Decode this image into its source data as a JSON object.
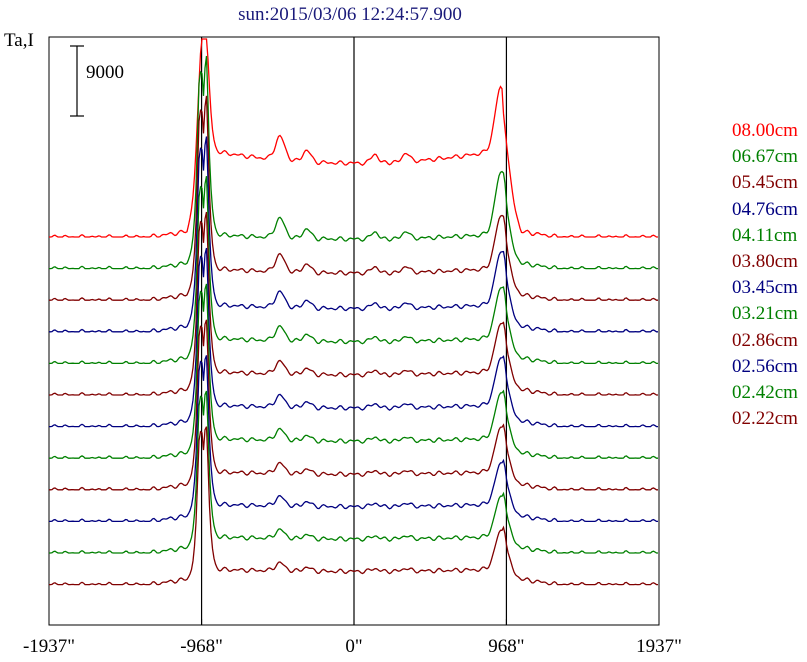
{
  "chart_data": {
    "type": "line",
    "title": "sun:2015/03/06 12:24:57.900",
    "ylabel": "Ta,I",
    "scale_bar": {
      "label": "9000",
      "value": 9000
    },
    "xlim": [
      -1937,
      1937
    ],
    "x_ticks": [
      {
        "value": -1937,
        "label": "-1937\""
      },
      {
        "value": -968,
        "label": "-968\""
      },
      {
        "value": 0,
        "label": "0\""
      },
      {
        "value": 968,
        "label": "968\""
      },
      {
        "value": 1937,
        "label": "1937\""
      }
    ],
    "vertical_lines": [
      -968,
      0,
      968
    ],
    "series": [
      {
        "name": "08.00cm",
        "color": "#ff0000",
        "offset": 0,
        "peakL": 29000,
        "peakR": 17500,
        "mid": 9500,
        "bump": 3000,
        "spiky": false
      },
      {
        "name": "06.67cm",
        "color": "#008000",
        "offset": 1,
        "peakL": 27000,
        "peakR": 11500,
        "mid": 3800,
        "bump": 2500,
        "spiky": true
      },
      {
        "name": "05.45cm",
        "color": "#800000",
        "offset": 2,
        "peakL": 26000,
        "peakR": 10000,
        "mid": 3500,
        "bump": 2200,
        "spiky": true
      },
      {
        "name": "04.76cm",
        "color": "#000080",
        "offset": 3,
        "peakL": 25000,
        "peakR": 9500,
        "mid": 3000,
        "bump": 2000,
        "spiky": true
      },
      {
        "name": "04.11cm",
        "color": "#008000",
        "offset": 4,
        "peakL": 24000,
        "peakR": 9000,
        "mid": 2800,
        "bump": 1800,
        "spiky": true
      },
      {
        "name": "03.80cm",
        "color": "#800000",
        "offset": 5,
        "peakL": 23500,
        "peakR": 8500,
        "mid": 2600,
        "bump": 1600,
        "spiky": true
      },
      {
        "name": "03.45cm",
        "color": "#000080",
        "offset": 6,
        "peakL": 23000,
        "peakR": 8200,
        "mid": 2400,
        "bump": 1500,
        "spiky": true
      },
      {
        "name": "03.21cm",
        "color": "#008000",
        "offset": 7,
        "peakL": 22500,
        "peakR": 7800,
        "mid": 2200,
        "bump": 1400,
        "spiky": true
      },
      {
        "name": "02.86cm",
        "color": "#800000",
        "offset": 8,
        "peakL": 22000,
        "peakR": 7500,
        "mid": 2000,
        "bump": 1300,
        "spiky": true
      },
      {
        "name": "02.56cm",
        "color": "#000080",
        "offset": 9,
        "peakL": 21500,
        "peakR": 7000,
        "mid": 1900,
        "bump": 1200,
        "spiky": true
      },
      {
        "name": "02.42cm",
        "color": "#008000",
        "offset": 10,
        "peakL": 21000,
        "peakR": 6800,
        "mid": 1800,
        "bump": 1100,
        "spiky": true
      },
      {
        "name": "02.22cm",
        "color": "#800000",
        "offset": 11,
        "peakL": 20500,
        "peakR": 6500,
        "mid": 1700,
        "bump": 1000,
        "spiky": true
      }
    ]
  }
}
